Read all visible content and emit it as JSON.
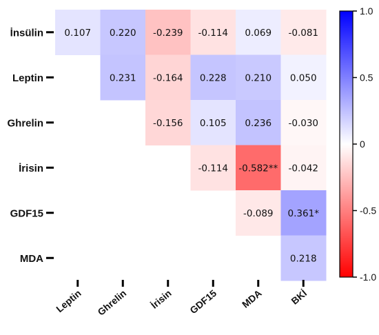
{
  "chart_data": {
    "type": "heatmap",
    "rows": [
      "İnsülin",
      "Leptin",
      "Ghrelin",
      "İrisin",
      "GDF15",
      "MDA"
    ],
    "columns": [
      "Leptin",
      "Ghrelin",
      "İrisin",
      "GDF15",
      "MDA",
      "BKİ"
    ],
    "cells": [
      {
        "row": 0,
        "col": 0,
        "value": 0.107,
        "label": "0.107"
      },
      {
        "row": 0,
        "col": 1,
        "value": 0.22,
        "label": "0.220"
      },
      {
        "row": 0,
        "col": 2,
        "value": -0.239,
        "label": "-0.239"
      },
      {
        "row": 0,
        "col": 3,
        "value": -0.114,
        "label": "-0.114"
      },
      {
        "row": 0,
        "col": 4,
        "value": 0.069,
        "label": "0.069"
      },
      {
        "row": 0,
        "col": 5,
        "value": -0.081,
        "label": "-0.081"
      },
      {
        "row": 1,
        "col": 1,
        "value": 0.231,
        "label": "0.231"
      },
      {
        "row": 1,
        "col": 2,
        "value": -0.164,
        "label": "-0.164"
      },
      {
        "row": 1,
        "col": 3,
        "value": 0.228,
        "label": "0.228"
      },
      {
        "row": 1,
        "col": 4,
        "value": 0.21,
        "label": "0.210"
      },
      {
        "row": 1,
        "col": 5,
        "value": 0.05,
        "label": "0.050"
      },
      {
        "row": 2,
        "col": 2,
        "value": -0.156,
        "label": "-0.156"
      },
      {
        "row": 2,
        "col": 3,
        "value": 0.105,
        "label": "0.105"
      },
      {
        "row": 2,
        "col": 4,
        "value": 0.236,
        "label": "0.236"
      },
      {
        "row": 2,
        "col": 5,
        "value": -0.03,
        "label": "-0.030"
      },
      {
        "row": 3,
        "col": 3,
        "value": -0.114,
        "label": "-0.114"
      },
      {
        "row": 3,
        "col": 4,
        "value": -0.582,
        "label": "-0.582**"
      },
      {
        "row": 3,
        "col": 5,
        "value": -0.042,
        "label": "-0.042"
      },
      {
        "row": 4,
        "col": 4,
        "value": -0.089,
        "label": "-0.089"
      },
      {
        "row": 4,
        "col": 5,
        "value": 0.361,
        "label": "0.361*"
      },
      {
        "row": 5,
        "col": 5,
        "value": 0.218,
        "label": "0.218"
      }
    ],
    "colorbar": {
      "min": -1.0,
      "max": 1.0,
      "ticks": [
        1.0,
        0.5,
        0,
        -0.5,
        -1.0
      ],
      "tick_labels": [
        "1.0",
        "0.5",
        "0",
        "-0.5",
        "-1.0"
      ],
      "low_color": "#ff0000",
      "mid_color": "#ffffff",
      "high_color": "#0000ff"
    },
    "title": "",
    "xlabel": "",
    "ylabel": ""
  }
}
